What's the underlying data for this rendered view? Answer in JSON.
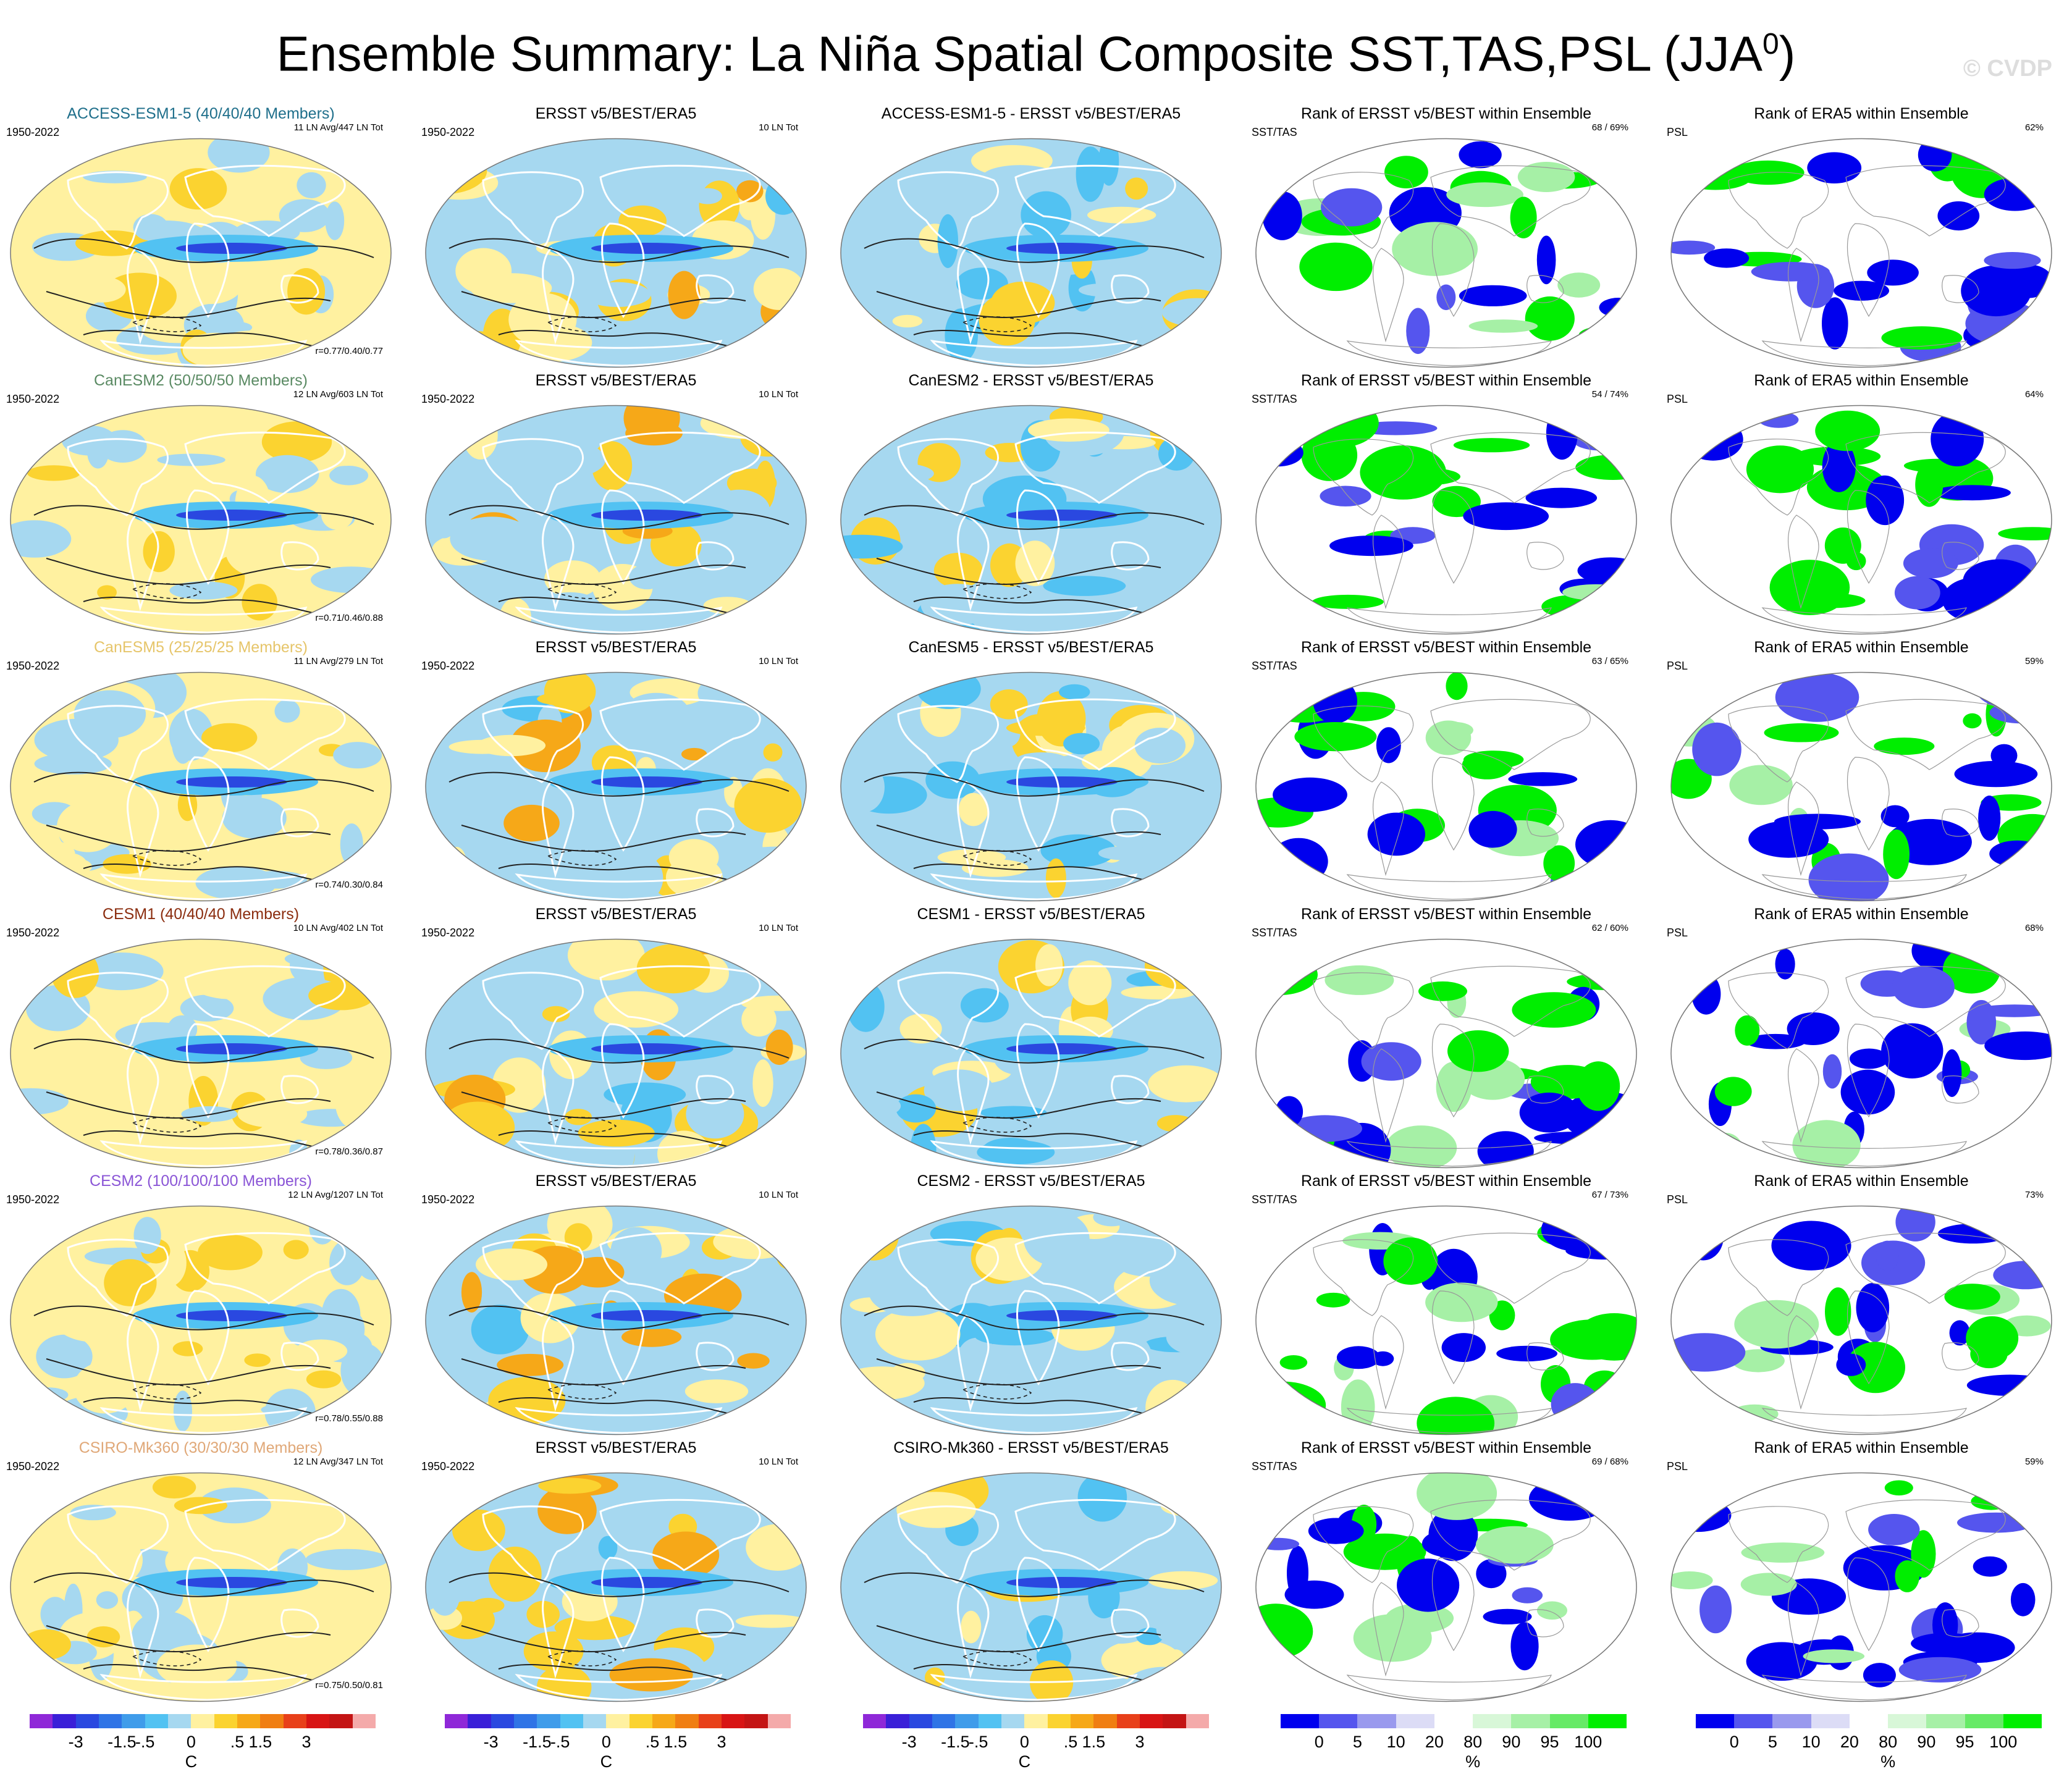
{
  "title": {
    "main": "Ensemble Summary: La Niña Spatial Composite SST,TAS,PSL (JJA",
    "sup": "0",
    "close": ")"
  },
  "copyright": "© CVDP",
  "rows": [
    {
      "model": "ACCESS-ESM1-5 (40/40/40 Members)",
      "model_color": "#1f6f8b",
      "c1_years": "1950-2022",
      "c1_counts": "11 LN Avg/447 LN Tot",
      "c1_r": "r=0.77/0.40/0.77",
      "c2_title": "ERSST v5/BEST/ERA5",
      "c2_years": "1950-2022",
      "c2_counts": "10 LN Tot",
      "c3_title": "ACCESS-ESM1-5 - ERSST v5/BEST/ERA5",
      "c4_title": "Rank of ERSST v5/BEST within Ensemble",
      "c4_label": "SST/TAS",
      "c4_pct": "68 /  69%",
      "c5_title": "Rank of ERA5 within Ensemble",
      "c5_label": "PSL",
      "c5_pct": "62%"
    },
    {
      "model": "CanESM2 (50/50/50 Members)",
      "model_color": "#5a8a63",
      "c1_years": "1950-2022",
      "c1_counts": "12 LN Avg/603 LN Tot",
      "c1_r": "r=0.71/0.46/0.88",
      "c2_title": "ERSST v5/BEST/ERA5",
      "c2_years": "1950-2022",
      "c2_counts": "10 LN Tot",
      "c3_title": "CanESM2 - ERSST v5/BEST/ERA5",
      "c4_title": "Rank of ERSST v5/BEST within Ensemble",
      "c4_label": "SST/TAS",
      "c4_pct": "54 /  74%",
      "c5_title": "Rank of ERA5 within Ensemble",
      "c5_label": "PSL",
      "c5_pct": "64%"
    },
    {
      "model": "CanESM5 (25/25/25 Members)",
      "model_color": "#e6c56a",
      "c1_years": "1950-2022",
      "c1_counts": "11 LN Avg/279 LN Tot",
      "c1_r": "r=0.74/0.30/0.84",
      "c2_title": "ERSST v5/BEST/ERA5",
      "c2_years": "1950-2022",
      "c2_counts": "10 LN Tot",
      "c3_title": "CanESM5 - ERSST v5/BEST/ERA5",
      "c4_title": "Rank of ERSST v5/BEST within Ensemble",
      "c4_label": "SST/TAS",
      "c4_pct": "63 /  65%",
      "c5_title": "Rank of ERA5 within Ensemble",
      "c5_label": "PSL",
      "c5_pct": "59%"
    },
    {
      "model": "CESM1 (40/40/40 Members)",
      "model_color": "#8b2d0f",
      "c1_years": "1950-2022",
      "c1_counts": "10 LN Avg/402 LN Tot",
      "c1_r": "r=0.78/0.36/0.87",
      "c2_title": "ERSST v5/BEST/ERA5",
      "c2_years": "1950-2022",
      "c2_counts": "10 LN Tot",
      "c3_title": "CESM1 - ERSST v5/BEST/ERA5",
      "c4_title": "Rank of ERSST v5/BEST within Ensemble",
      "c4_label": "SST/TAS",
      "c4_pct": "62 /  60%",
      "c5_title": "Rank of ERA5 within Ensemble",
      "c5_label": "PSL",
      "c5_pct": "68%"
    },
    {
      "model": "CESM2 (100/100/100 Members)",
      "model_color": "#8a55d6",
      "c1_years": "1950-2022",
      "c1_counts": "12 LN Avg/1207 LN Tot",
      "c1_r": "r=0.78/0.55/0.88",
      "c2_title": "ERSST v5/BEST/ERA5",
      "c2_years": "1950-2022",
      "c2_counts": "10 LN Tot",
      "c3_title": "CESM2 - ERSST v5/BEST/ERA5",
      "c4_title": "Rank of ERSST v5/BEST within Ensemble",
      "c4_label": "SST/TAS",
      "c4_pct": "67 /  73%",
      "c5_title": "Rank of ERA5 within Ensemble",
      "c5_label": "PSL",
      "c5_pct": "73%"
    },
    {
      "model": "CSIRO-Mk360 (30/30/30 Members)",
      "model_color": "#e0a878",
      "c1_years": "1950-2022",
      "c1_counts": "12 LN Avg/347 LN Tot",
      "c1_r": "r=0.75/0.50/0.81",
      "c2_title": "ERSST v5/BEST/ERA5",
      "c2_years": "1950-2022",
      "c2_counts": "10 LN Tot",
      "c3_title": "CSIRO-Mk360 - ERSST v5/BEST/ERA5",
      "c4_title": "Rank of ERSST v5/BEST within Ensemble",
      "c4_label": "SST/TAS",
      "c4_pct": "69 /  68%",
      "c5_title": "Rank of ERA5 within Ensemble",
      "c5_label": "PSL",
      "c5_pct": "59%"
    }
  ],
  "colorbars": {
    "temp": {
      "colors": [
        "#8f28d8",
        "#3a1fd8",
        "#2a48e0",
        "#2f74e6",
        "#3f9cea",
        "#52c2f2",
        "#a6d8f0",
        "#fff1a0",
        "#fbd330",
        "#f6a818",
        "#f07e12",
        "#e8401a",
        "#d81414",
        "#c41414",
        "#f4aaaa"
      ],
      "ticks": [
        "-3",
        "-1.5",
        "-.5",
        "0",
        ".5",
        "1.5",
        "3"
      ],
      "unit": "C"
    },
    "rank": {
      "colors": [
        "#0000ee",
        "#5555ee",
        "#9999ee",
        "#dcdcf6",
        "#ffffff",
        "#d8f7d8",
        "#a6f0a6",
        "#66ea66",
        "#00ee00"
      ],
      "ticks": [
        "0",
        "5",
        "10",
        "20",
        "80",
        "90",
        "95",
        "100"
      ],
      "unit": "%"
    }
  },
  "palette": {
    "temp_anom": [
      "#2a48e0",
      "#52c2f2",
      "#a6d8f0",
      "#fff1a0",
      "#fbd330",
      "#f6a818",
      "#e8401a"
    ],
    "rank_low": "#0000ee",
    "rank_mid": "#5555ee",
    "rank_high": "#00ee00",
    "rank_lightgreen": "#a6f0a6"
  }
}
